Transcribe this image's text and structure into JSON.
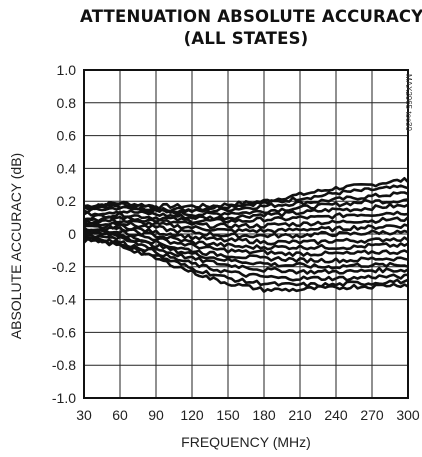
{
  "chart_data": {
    "type": "line",
    "title_line1": "ATTENUATION ABSOLUTE ACCURACY",
    "title_line2": "(ALL STATES)",
    "xlabel": "FREQUENCY (MHz)",
    "ylabel": "ABSOLUTE ACCURACY (dB)",
    "watermark": "MAX2065 toc30",
    "xlim": [
      30,
      300
    ],
    "ylim": [
      -1.0,
      1.0
    ],
    "x_ticks": [
      "30",
      "60",
      "90",
      "120",
      "150",
      "180",
      "210",
      "240",
      "270",
      "300"
    ],
    "y_ticks": [
      "1.0",
      "0.8",
      "0.6",
      "0.4",
      "0.2",
      "0",
      "-0.2",
      "-0.4",
      "-0.6",
      "-0.8",
      "-1.0"
    ],
    "grid": true,
    "line_color": "#111111",
    "x": [
      30,
      45,
      60,
      75,
      90,
      105,
      120,
      135,
      150,
      165,
      180,
      195,
      210,
      225,
      240,
      255,
      270,
      285,
      300
    ],
    "series": [
      {
        "values": [
          0.17,
          0.18,
          0.19,
          0.18,
          0.17,
          0.17,
          0.17,
          0.17,
          0.18,
          0.19,
          0.2,
          0.22,
          0.24,
          0.26,
          0.28,
          0.29,
          0.3,
          0.32,
          0.33
        ]
      },
      {
        "values": [
          0.16,
          0.17,
          0.18,
          0.17,
          0.16,
          0.15,
          0.15,
          0.16,
          0.17,
          0.18,
          0.19,
          0.2,
          0.22,
          0.23,
          0.25,
          0.26,
          0.27,
          0.28,
          0.29
        ]
      },
      {
        "values": [
          0.15,
          0.16,
          0.17,
          0.16,
          0.15,
          0.14,
          0.14,
          0.14,
          0.15,
          0.16,
          0.17,
          0.18,
          0.19,
          0.2,
          0.21,
          0.22,
          0.23,
          0.24,
          0.25
        ]
      },
      {
        "values": [
          0.14,
          0.15,
          0.16,
          0.15,
          0.14,
          0.13,
          0.12,
          0.12,
          0.13,
          0.13,
          0.14,
          0.15,
          0.16,
          0.17,
          0.18,
          0.19,
          0.2,
          0.2,
          0.21
        ]
      },
      {
        "values": [
          0.12,
          0.13,
          0.14,
          0.13,
          0.12,
          0.11,
          0.1,
          0.1,
          0.1,
          0.11,
          0.12,
          0.12,
          0.13,
          0.14,
          0.15,
          0.15,
          0.16,
          0.17,
          0.17
        ]
      },
      {
        "values": [
          0.1,
          0.11,
          0.12,
          0.11,
          0.1,
          0.09,
          0.08,
          0.08,
          0.08,
          0.08,
          0.09,
          0.09,
          0.1,
          0.1,
          0.11,
          0.12,
          0.12,
          0.13,
          0.13
        ]
      },
      {
        "values": [
          0.09,
          0.09,
          0.1,
          0.09,
          0.08,
          0.07,
          0.06,
          0.05,
          0.05,
          0.05,
          0.05,
          0.06,
          0.06,
          0.07,
          0.07,
          0.08,
          0.08,
          0.09,
          0.09
        ]
      },
      {
        "values": [
          0.07,
          0.08,
          0.08,
          0.07,
          0.06,
          0.05,
          0.04,
          0.03,
          0.02,
          0.02,
          0.02,
          0.02,
          0.03,
          0.03,
          0.03,
          0.04,
          0.04,
          0.05,
          0.05
        ]
      },
      {
        "values": [
          0.06,
          0.06,
          0.07,
          0.05,
          0.04,
          0.02,
          0.01,
          0.0,
          -0.01,
          -0.01,
          -0.01,
          -0.01,
          -0.01,
          0.0,
          0.0,
          0.0,
          0.01,
          0.01,
          0.01
        ]
      },
      {
        "values": [
          0.04,
          0.04,
          0.05,
          0.03,
          0.01,
          0.0,
          -0.02,
          -0.03,
          -0.04,
          -0.04,
          -0.05,
          -0.05,
          -0.05,
          -0.05,
          -0.04,
          -0.04,
          -0.04,
          -0.03,
          -0.03
        ]
      },
      {
        "values": [
          0.03,
          0.03,
          0.03,
          0.01,
          -0.01,
          -0.03,
          -0.05,
          -0.06,
          -0.07,
          -0.08,
          -0.08,
          -0.08,
          -0.08,
          -0.08,
          -0.08,
          -0.08,
          -0.07,
          -0.07,
          -0.07
        ]
      },
      {
        "values": [
          0.02,
          0.02,
          0.02,
          -0.01,
          -0.03,
          -0.05,
          -0.07,
          -0.09,
          -0.1,
          -0.11,
          -0.11,
          -0.12,
          -0.12,
          -0.12,
          -0.12,
          -0.12,
          -0.11,
          -0.11,
          -0.11
        ]
      },
      {
        "values": [
          0.01,
          0.01,
          0.0,
          -0.03,
          -0.05,
          -0.08,
          -0.1,
          -0.12,
          -0.13,
          -0.14,
          -0.15,
          -0.15,
          -0.16,
          -0.16,
          -0.16,
          -0.16,
          -0.15,
          -0.15,
          -0.15
        ]
      },
      {
        "values": [
          0.0,
          0.0,
          -0.01,
          -0.04,
          -0.07,
          -0.1,
          -0.12,
          -0.14,
          -0.16,
          -0.17,
          -0.18,
          -0.19,
          -0.19,
          -0.2,
          -0.2,
          -0.19,
          -0.19,
          -0.19,
          -0.19
        ]
      },
      {
        "values": [
          -0.01,
          -0.01,
          -0.03,
          -0.06,
          -0.09,
          -0.12,
          -0.15,
          -0.17,
          -0.19,
          -0.2,
          -0.22,
          -0.22,
          -0.23,
          -0.23,
          -0.23,
          -0.23,
          -0.22,
          -0.22,
          -0.22
        ]
      },
      {
        "values": [
          -0.02,
          -0.03,
          -0.05,
          -0.08,
          -0.11,
          -0.15,
          -0.18,
          -0.21,
          -0.23,
          -0.25,
          -0.26,
          -0.27,
          -0.27,
          -0.27,
          -0.27,
          -0.27,
          -0.26,
          -0.26,
          -0.26
        ]
      },
      {
        "values": [
          -0.03,
          -0.04,
          -0.06,
          -0.1,
          -0.13,
          -0.17,
          -0.21,
          -0.24,
          -0.27,
          -0.29,
          -0.3,
          -0.31,
          -0.31,
          -0.31,
          -0.31,
          -0.3,
          -0.3,
          -0.29,
          -0.29
        ]
      },
      {
        "values": [
          -0.04,
          -0.05,
          -0.07,
          -0.11,
          -0.15,
          -0.19,
          -0.23,
          -0.27,
          -0.3,
          -0.32,
          -0.34,
          -0.34,
          -0.34,
          -0.33,
          -0.33,
          -0.32,
          -0.32,
          -0.31,
          -0.31
        ]
      }
    ]
  }
}
